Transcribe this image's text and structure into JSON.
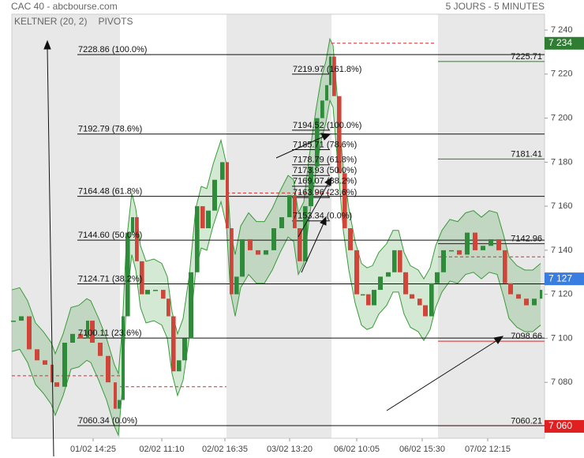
{
  "chart_data": {
    "type": "candlestick",
    "title": "CAC 40 - abcbourse.com",
    "subtitle": "5 JOURS - 5 MINUTES",
    "indicators": [
      {
        "name": "KELTNER (20, 2)",
        "color": "#3a9a3a"
      },
      {
        "name": "PIVOTS",
        "color": "#555555"
      }
    ],
    "x": [
      0,
      10,
      20,
      30,
      40,
      50,
      55,
      65,
      75,
      85,
      95,
      100,
      110,
      120,
      130,
      135,
      140,
      145,
      152,
      157,
      163,
      170,
      180,
      190,
      197,
      203,
      210,
      217,
      225,
      233,
      240,
      247,
      255,
      265,
      272,
      277,
      283,
      290,
      300,
      310,
      320,
      330,
      340,
      350,
      357,
      363,
      370,
      377,
      385,
      392,
      398,
      403,
      407,
      413,
      420,
      427,
      435,
      443,
      450,
      457,
      465,
      475,
      483,
      490,
      497,
      505,
      515,
      522,
      530,
      537,
      545,
      555,
      565,
      575,
      585,
      595,
      605,
      615,
      623,
      630,
      640,
      650,
      660,
      670
    ],
    "values": [
      7108,
      7110,
      7095,
      7090,
      7088,
      7080,
      7078,
      7098,
      7102,
      7100,
      7108,
      7098,
      7092,
      7080,
      7068,
      7072,
      7110,
      7148,
      7155,
      7135,
      7120,
      7122,
      7122,
      7118,
      7110,
      7085,
      7090,
      7100,
      7130,
      7160,
      7150,
      7158,
      7172,
      7180,
      7150,
      7120,
      7128,
      7145,
      7140,
      7138,
      7140,
      7150,
      7155,
      7165,
      7150,
      7135,
      7160,
      7178,
      7200,
      7208,
      7215,
      7228,
      7210,
      7175,
      7150,
      7140,
      7120,
      7120,
      7115,
      7122,
      7128,
      7130,
      7140,
      7130,
      7120,
      7118,
      7115,
      7110,
      7125,
      7130,
      7140,
      7140,
      7138,
      7148,
      7140,
      7142,
      7145,
      7140,
      7125,
      7120,
      7118,
      7115,
      7118,
      7122
    ],
    "up_color": "#2e8b3a",
    "down_color": "#d0453a",
    "band": {
      "color": "#3a9a3a",
      "upper": [
        7122,
        7123,
        7117,
        7107,
        7103,
        7098,
        7093,
        7102,
        7114,
        7115,
        7118,
        7117,
        7109,
        7100,
        7088,
        7084,
        7105,
        7143,
        7166,
        7159,
        7142,
        7135,
        7136,
        7134,
        7128,
        7112,
        7102,
        7109,
        7129,
        7159,
        7169,
        7168,
        7179,
        7190,
        7179,
        7149,
        7138,
        7151,
        7157,
        7153,
        7153,
        7159,
        7167,
        7174,
        7172,
        7157,
        7162,
        7183,
        7203,
        7218,
        7226,
        7236,
        7233,
        7207,
        7177,
        7159,
        7144,
        7134,
        7132,
        7133,
        7139,
        7143,
        7149,
        7149,
        7139,
        7133,
        7131,
        7127,
        7132,
        7142,
        7149,
        7154,
        7153,
        7157,
        7158,
        7155,
        7158,
        7157,
        7147,
        7137,
        7133,
        7131,
        7131,
        7134
      ],
      "lower": [
        7094,
        7095,
        7089,
        7079,
        7075,
        7070,
        7065,
        7074,
        7086,
        7087,
        7090,
        7089,
        7081,
        7072,
        7060,
        7056,
        7077,
        7115,
        7138,
        7131,
        7114,
        7107,
        7108,
        7106,
        7100,
        7084,
        7074,
        7081,
        7101,
        7131,
        7141,
        7140,
        7151,
        7162,
        7151,
        7121,
        7110,
        7123,
        7129,
        7125,
        7125,
        7131,
        7139,
        7146,
        7144,
        7129,
        7134,
        7155,
        7175,
        7190,
        7198,
        7208,
        7205,
        7179,
        7149,
        7131,
        7116,
        7106,
        7104,
        7105,
        7111,
        7115,
        7121,
        7121,
        7111,
        7105,
        7103,
        7099,
        7104,
        7114,
        7121,
        7126,
        7125,
        7129,
        7130,
        7127,
        7130,
        7129,
        7119,
        7109,
        7105,
        7103,
        7103,
        7106
      ]
    },
    "xlim": [
      0,
      675
    ],
    "xticks": [
      {
        "value": 103,
        "label": "01/02 14:25"
      },
      {
        "value": 190,
        "label": "02/02 11:10"
      },
      {
        "value": 270,
        "label": "02/02 16:35"
      },
      {
        "value": 352,
        "label": "03/02 13:20"
      },
      {
        "value": 437,
        "label": "06/02 10:05"
      },
      {
        "value": 520,
        "label": "06/02 15:30"
      },
      {
        "value": 603,
        "label": "07/02 12:15"
      }
    ],
    "ylim": [
      7054.6,
      7247.2
    ],
    "yticks": [
      {
        "value": 7240,
        "label": "7 240"
      },
      {
        "value": 7220,
        "label": "7 220"
      },
      {
        "value": 7200,
        "label": "7 200"
      },
      {
        "value": 7180,
        "label": "7 180"
      },
      {
        "value": 7160,
        "label": "7 160"
      },
      {
        "value": 7140,
        "label": "7 140"
      },
      {
        "value": 7120,
        "label": "7 120"
      },
      {
        "value": 7100,
        "label": "7 100"
      },
      {
        "value": 7080,
        "label": "7 080"
      },
      {
        "value": 7060,
        "label": "7 060"
      }
    ],
    "sessions": [
      [
        0,
        137
      ],
      [
        272,
        405
      ],
      [
        540,
        675
      ]
    ],
    "fib_levels": [
      {
        "value": 7228.86,
        "label": "7228.86 (100.0%)"
      },
      {
        "value": 7192.79,
        "label": "7192.79 (78.6%)"
      },
      {
        "value": 7164.48,
        "label": "7164.48 (61.8%)"
      },
      {
        "value": 7144.6,
        "label": "7144.60 (50.0%)"
      },
      {
        "value": 7124.71,
        "label": "7124.71 (38.2%)"
      },
      {
        "value": 7100.11,
        "label": "7100.11 (23.6%)"
      },
      {
        "value": 7060.34,
        "label": "7060.34 (0.0%)"
      }
    ],
    "fib_levels_2": [
      {
        "value": 7219.97,
        "label": "7219.97 (161.8%)"
      },
      {
        "value": 7194.52,
        "label": "7194.52 (100.0%)"
      },
      {
        "value": 7185.71,
        "label": "7185.71 (78.6%)"
      },
      {
        "value": 7178.79,
        "label": "7178.79 (61.8%)"
      },
      {
        "value": 7173.93,
        "label": "7173.93 (50.0%)"
      },
      {
        "value": 7169.07,
        "label": "7169.07 (38.2%)"
      },
      {
        "value": 7163.96,
        "label": "7163.96 (23.6%)"
      },
      {
        "value": 7153.34,
        "label": "7153.34 (0.0%)"
      }
    ],
    "pivots": [
      {
        "value": 7225.71,
        "color": "#2e7d32"
      },
      {
        "value": 7181.41,
        "color": "#2e7d32"
      },
      {
        "value": 7142.96,
        "color": "#222222"
      },
      {
        "value": 7098.66,
        "color": "#d32f2f"
      },
      {
        "value": 7060.21,
        "color": "#d32f2f"
      }
    ],
    "dashed_levels": [
      {
        "value": 7083,
        "from": 0,
        "to": 137
      },
      {
        "value": 7078,
        "from": 137,
        "to": 272
      },
      {
        "value": 7166,
        "from": 272,
        "to": 405
      },
      {
        "value": 7234,
        "from": 405,
        "to": 537
      },
      {
        "value": 7137,
        "from": 540,
        "to": 675
      }
    ],
    "price_tags": [
      {
        "value": 7234,
        "label": "7 234",
        "color": "#2e7d32"
      },
      {
        "value": 7127,
        "label": "7 127",
        "color": "#3a7de0"
      },
      {
        "value": 7060,
        "label": "7 060",
        "color": "#e02020"
      }
    ]
  }
}
